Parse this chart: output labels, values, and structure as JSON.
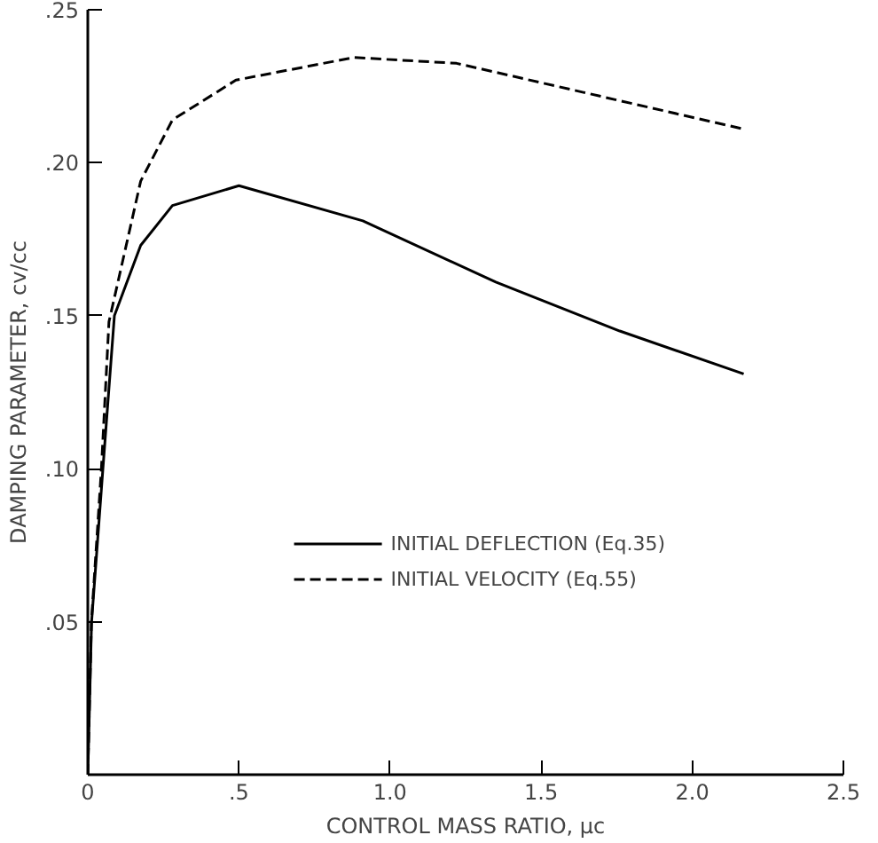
{
  "chart_data": {
    "type": "line",
    "xlabel": "CONTROL MASS RATIO, μc",
    "ylabel": "DAMPING PARAMETER, cv/cc",
    "xlim": [
      0,
      2.5
    ],
    "ylim": [
      0,
      0.25
    ],
    "xticks": [
      {
        "value": 0,
        "label": "0"
      },
      {
        "value": 0.5,
        "label": ".5"
      },
      {
        "value": 1.0,
        "label": "1.0"
      },
      {
        "value": 1.5,
        "label": "1.5"
      },
      {
        "value": 2.0,
        "label": "2.0"
      },
      {
        "value": 2.5,
        "label": "2.5"
      }
    ],
    "yticks": [
      {
        "value": 0.05,
        "label": ".05"
      },
      {
        "value": 0.1,
        "label": ".10"
      },
      {
        "value": 0.15,
        "label": ".15"
      },
      {
        "value": 0.2,
        "label": ".20"
      },
      {
        "value": 0.25,
        "label": ".25"
      }
    ],
    "grid": false,
    "legend": "right",
    "series": [
      {
        "name": "INITIAL DEFLECTION (Eq.35)",
        "color": "#000000",
        "line_style": "solid",
        "x": [
          0,
          0.0125,
          0.05,
          0.088,
          0.175,
          0.28,
          0.5,
          0.91,
          1.35,
          1.76,
          2.17
        ],
        "values": [
          0,
          0.05,
          0.1,
          0.15,
          0.173,
          0.186,
          0.1925,
          0.181,
          0.161,
          0.145,
          0.131
        ]
      },
      {
        "name": "INITIAL VELOCITY (Eq.55)",
        "color": "#000000",
        "line_style": "dashed",
        "x": [
          0,
          0.012,
          0.045,
          0.07,
          0.175,
          0.28,
          0.49,
          0.88,
          1.22,
          1.64,
          2.17
        ],
        "values": [
          0,
          0.05,
          0.1,
          0.148,
          0.194,
          0.214,
          0.227,
          0.2344,
          0.2325,
          0.223,
          0.211
        ]
      }
    ]
  }
}
